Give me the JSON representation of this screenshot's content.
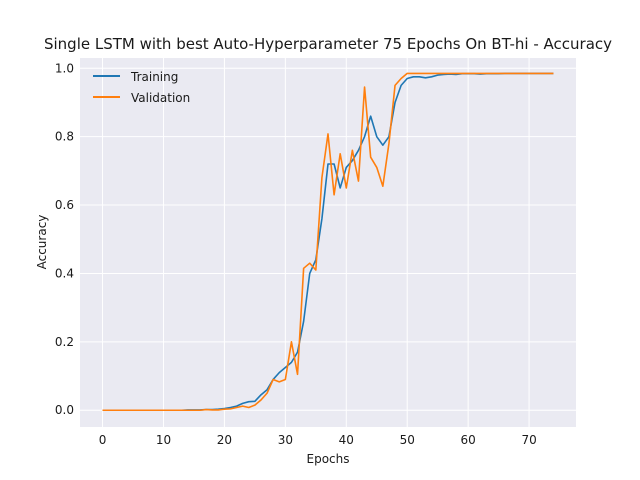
{
  "chart_data": {
    "type": "line",
    "title": "Single LSTM with best Auto-Hyperparameter 75 Epochs On BT-hi - Accuracy",
    "xlabel": "Epochs",
    "ylabel": "Accuracy",
    "xlim": [
      -3.7,
      77.7
    ],
    "ylim": [
      -0.049,
      1.03
    ],
    "xticks": [
      0,
      10,
      20,
      30,
      40,
      50,
      60,
      70
    ],
    "yticks": [
      0.0,
      0.2,
      0.4,
      0.6,
      0.8,
      1.0
    ],
    "xtick_labels": [
      "0",
      "10",
      "20",
      "30",
      "40",
      "50",
      "60",
      "70"
    ],
    "ytick_labels": [
      "0.0",
      "0.2",
      "0.4",
      "0.6",
      "0.8",
      "1.0"
    ],
    "grid": true,
    "background": "#eaeaf2",
    "legend_position": "top-left",
    "x": [
      0,
      1,
      2,
      3,
      4,
      5,
      6,
      7,
      8,
      9,
      10,
      11,
      12,
      13,
      14,
      15,
      16,
      17,
      18,
      19,
      20,
      21,
      22,
      23,
      24,
      25,
      26,
      27,
      28,
      29,
      30,
      31,
      32,
      33,
      34,
      35,
      36,
      37,
      38,
      39,
      40,
      41,
      42,
      43,
      44,
      45,
      46,
      47,
      48,
      49,
      50,
      51,
      52,
      53,
      54,
      55,
      56,
      57,
      58,
      59,
      60,
      61,
      62,
      63,
      64,
      65,
      66,
      67,
      68,
      69,
      70,
      71,
      72,
      73,
      74
    ],
    "series": [
      {
        "name": "Training",
        "color": "#1f77b4",
        "values": [
          0.0,
          0.0,
          0.0,
          0.0,
          0.0,
          0.0,
          0.0,
          0.0,
          0.0,
          0.0,
          0.0,
          0.0,
          0.0,
          0.0,
          0.001,
          0.001,
          0.001,
          0.002,
          0.002,
          0.003,
          0.005,
          0.008,
          0.012,
          0.02,
          0.025,
          0.026,
          0.045,
          0.06,
          0.09,
          0.11,
          0.125,
          0.14,
          0.17,
          0.26,
          0.4,
          0.44,
          0.56,
          0.72,
          0.72,
          0.65,
          0.71,
          0.73,
          0.76,
          0.8,
          0.86,
          0.8,
          0.775,
          0.8,
          0.9,
          0.95,
          0.97,
          0.975,
          0.975,
          0.972,
          0.975,
          0.98,
          0.982,
          0.983,
          0.982,
          0.984,
          0.984,
          0.984,
          0.983,
          0.984,
          0.984,
          0.984,
          0.985,
          0.985,
          0.985,
          0.985,
          0.985,
          0.985,
          0.985,
          0.985,
          0.985
        ]
      },
      {
        "name": "Validation",
        "color": "#ff7f0e",
        "values": [
          0.0,
          0.0,
          0.0,
          0.0,
          0.0,
          0.0,
          0.0,
          0.0,
          0.0,
          0.0,
          0.0,
          0.0,
          0.0,
          0.0,
          0.0,
          0.0,
          0.0,
          0.002,
          0.001,
          0.001,
          0.003,
          0.004,
          0.008,
          0.012,
          0.008,
          0.015,
          0.03,
          0.05,
          0.09,
          0.083,
          0.09,
          0.2,
          0.105,
          0.415,
          0.43,
          0.41,
          0.68,
          0.808,
          0.63,
          0.75,
          0.65,
          0.76,
          0.67,
          0.945,
          0.74,
          0.71,
          0.655,
          0.78,
          0.95,
          0.97,
          0.985,
          0.985,
          0.985,
          0.985,
          0.985,
          0.985,
          0.985,
          0.985,
          0.985,
          0.985,
          0.985,
          0.985,
          0.985,
          0.985,
          0.985,
          0.985,
          0.985,
          0.985,
          0.985,
          0.985,
          0.985,
          0.985,
          0.985,
          0.985,
          0.985
        ]
      }
    ]
  }
}
